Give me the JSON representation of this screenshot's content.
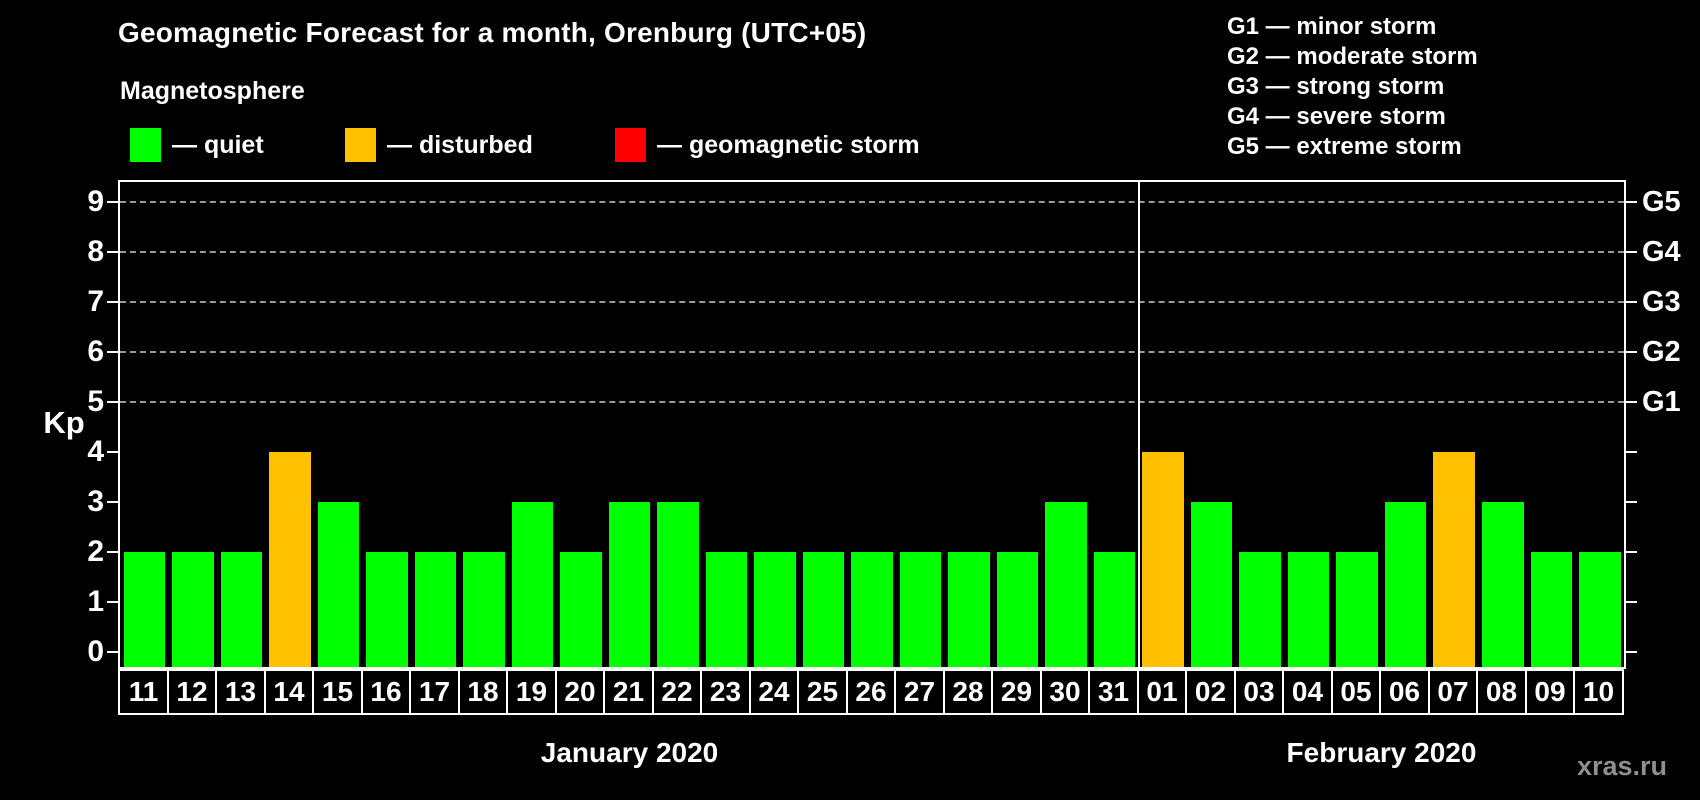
{
  "header": {
    "title": "Geomagnetic Forecast for a month, Orenburg (UTC+05)",
    "subtitle": "Magnetosphere"
  },
  "legend": {
    "items": [
      {
        "label": "— quiet",
        "status": "quiet"
      },
      {
        "label": "— disturbed",
        "status": "disturbed"
      },
      {
        "label": "— geomagnetic storm",
        "status": "storm"
      }
    ]
  },
  "g_scale_legend": [
    "G1 — minor storm",
    "G2 — moderate storm",
    "G3 — strong storm",
    "G4 — severe storm",
    "G5 — extreme storm"
  ],
  "colors": {
    "quiet": "#00ff00",
    "disturbed": "#ffc000",
    "storm": "#ff0000",
    "grid": "#9a9a9a",
    "axis": "#ffffff",
    "watermark": "#8f8f8f"
  },
  "watermark": "xras.ru",
  "chart_data": {
    "type": "bar",
    "title": "Geomagnetic Forecast for a month, Orenburg (UTC+05)",
    "ylabel": "Kp",
    "ylim": [
      0,
      9.4
    ],
    "yticks": [
      0,
      1,
      2,
      3,
      4,
      5,
      6,
      7,
      8,
      9
    ],
    "grid": "dashed horizontal at Kp 5-9 only",
    "right_axis": [
      {
        "label": "G1",
        "kp": 5
      },
      {
        "label": "G2",
        "kp": 6
      },
      {
        "label": "G3",
        "kp": 7
      },
      {
        "label": "G4",
        "kp": 8
      },
      {
        "label": "G5",
        "kp": 9
      }
    ],
    "months": [
      {
        "label": "January 2020",
        "days": [
          "11",
          "12",
          "13",
          "14",
          "15",
          "16",
          "17",
          "18",
          "19",
          "20",
          "21",
          "22",
          "23",
          "24",
          "25",
          "26",
          "27",
          "28",
          "29",
          "30",
          "31"
        ],
        "values": [
          2,
          2,
          2,
          4,
          3,
          2,
          2,
          2,
          3,
          2,
          3,
          3,
          2,
          2,
          2,
          2,
          2,
          2,
          2,
          3,
          2
        ],
        "statuses": [
          "quiet",
          "quiet",
          "quiet",
          "disturbed",
          "quiet",
          "quiet",
          "quiet",
          "quiet",
          "quiet",
          "quiet",
          "quiet",
          "quiet",
          "quiet",
          "quiet",
          "quiet",
          "quiet",
          "quiet",
          "quiet",
          "quiet",
          "quiet",
          "quiet"
        ]
      },
      {
        "label": "February 2020",
        "days": [
          "01",
          "02",
          "03",
          "04",
          "05",
          "06",
          "07",
          "08",
          "09",
          "10"
        ],
        "values": [
          4,
          3,
          2,
          2,
          2,
          3,
          4,
          3,
          2,
          2
        ],
        "statuses": [
          "disturbed",
          "quiet",
          "quiet",
          "quiet",
          "quiet",
          "quiet",
          "disturbed",
          "quiet",
          "quiet",
          "quiet"
        ]
      }
    ]
  }
}
